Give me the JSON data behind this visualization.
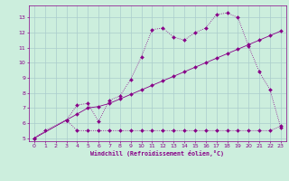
{
  "title": "",
  "xlabel": "Windchill (Refroidissement éolien,°C)",
  "background_color": "#cceedd",
  "grid_color": "#aacccc",
  "line_color": "#880088",
  "xlim": [
    -0.5,
    23.5
  ],
  "ylim": [
    4.8,
    13.8
  ],
  "xticks": [
    0,
    1,
    2,
    3,
    4,
    5,
    6,
    7,
    8,
    9,
    10,
    11,
    12,
    13,
    14,
    15,
    16,
    17,
    18,
    19,
    20,
    21,
    22,
    23
  ],
  "yticks": [
    5,
    6,
    7,
    8,
    9,
    10,
    11,
    12,
    13
  ],
  "line1_x": [
    0,
    1,
    3,
    4,
    5,
    6,
    7,
    8,
    9,
    10,
    11,
    12,
    13,
    14,
    15,
    16,
    17,
    18,
    19,
    20,
    21,
    22,
    23
  ],
  "line1_y": [
    5.0,
    5.5,
    6.2,
    7.2,
    7.3,
    6.1,
    7.5,
    7.8,
    8.9,
    10.4,
    12.2,
    12.3,
    11.7,
    11.5,
    12.0,
    12.3,
    13.2,
    13.3,
    13.0,
    11.1,
    9.4,
    8.2,
    5.7
  ],
  "line2_x": [
    0,
    3,
    4,
    5,
    6,
    7,
    8,
    9,
    10,
    11,
    12,
    13,
    14,
    15,
    16,
    17,
    18,
    19,
    20,
    21,
    22,
    23
  ],
  "line2_y": [
    5.0,
    6.2,
    5.5,
    5.5,
    5.5,
    5.5,
    5.5,
    5.5,
    5.5,
    5.5,
    5.5,
    5.5,
    5.5,
    5.5,
    5.5,
    5.5,
    5.5,
    5.5,
    5.5,
    5.5,
    5.5,
    5.8
  ],
  "line3_x": [
    0,
    3,
    4,
    5,
    6,
    7,
    8,
    9,
    10,
    11,
    12,
    13,
    14,
    15,
    16,
    17,
    18,
    19,
    20,
    21,
    22,
    23
  ],
  "line3_y": [
    5.0,
    6.2,
    6.6,
    7.0,
    7.1,
    7.3,
    7.6,
    7.9,
    8.2,
    8.5,
    8.8,
    9.1,
    9.4,
    9.7,
    10.0,
    10.3,
    10.6,
    10.9,
    11.2,
    11.5,
    11.8,
    12.1
  ]
}
